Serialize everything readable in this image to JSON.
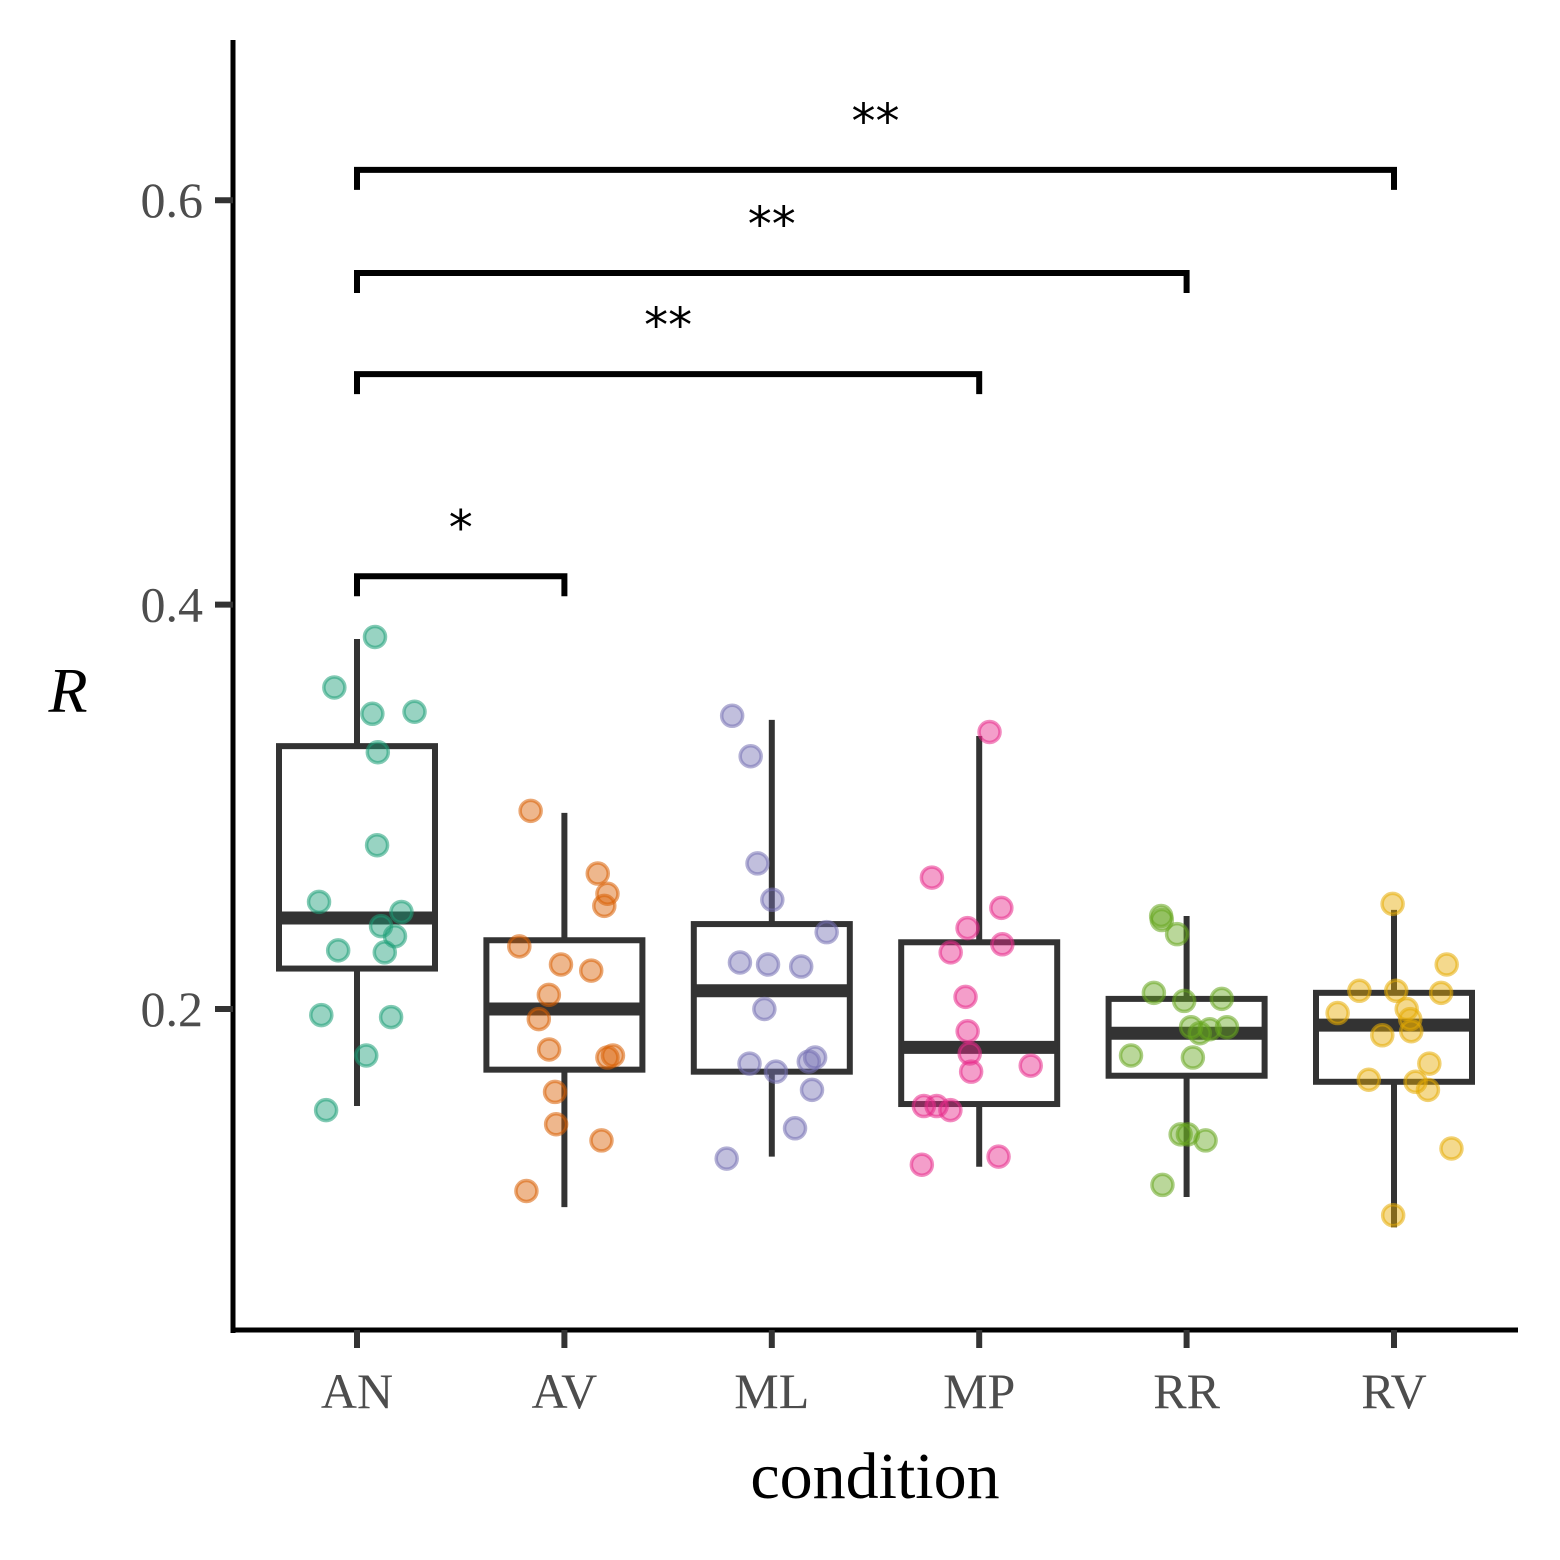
{
  "chart_data": {
    "type": "box",
    "xlabel": "condition",
    "ylabel": "R",
    "ylim": [
      0.04,
      0.68
    ],
    "yticks": [
      0.2,
      0.4,
      0.6
    ],
    "ytick_labels": [
      "0.2",
      "0.4",
      "0.6"
    ],
    "grid": false,
    "legend": "none",
    "categories": [
      "AN",
      "AV",
      "ML",
      "MP",
      "RR",
      "RV"
    ],
    "colors": {
      "AN": "#1b9e77",
      "AV": "#d95f02",
      "ML": "#7570b3",
      "MP": "#e7298a",
      "RR": "#66a61e",
      "RV": "#e6ab02"
    },
    "boxes": [
      {
        "category": "AN",
        "min": 0.152,
        "q1": 0.22,
        "median": 0.245,
        "q3": 0.33,
        "max": 0.383
      },
      {
        "category": "AV",
        "min": 0.102,
        "q1": 0.17,
        "median": 0.2,
        "q3": 0.234,
        "max": 0.297
      },
      {
        "category": "ML",
        "min": 0.127,
        "q1": 0.169,
        "median": 0.209,
        "q3": 0.242,
        "max": 0.343
      },
      {
        "category": "MP",
        "min": 0.122,
        "q1": 0.153,
        "median": 0.181,
        "q3": 0.233,
        "max": 0.335
      },
      {
        "category": "RR",
        "min": 0.107,
        "q1": 0.167,
        "median": 0.188,
        "q3": 0.205,
        "max": 0.246
      },
      {
        "category": "RV",
        "min": 0.092,
        "q1": 0.164,
        "median": 0.192,
        "q3": 0.208,
        "max": 0.249
      }
    ],
    "points": {
      "AN": [
        0.384,
        0.359,
        0.346,
        0.347,
        0.327,
        0.281,
        0.253,
        0.248,
        0.241,
        0.236,
        0.228,
        0.229,
        0.196,
        0.197,
        0.177,
        0.15
      ],
      "AV": [
        0.298,
        0.267,
        0.257,
        0.251,
        0.231,
        0.222,
        0.219,
        0.207,
        0.195,
        0.18,
        0.177,
        0.176,
        0.159,
        0.143,
        0.135,
        0.11
      ],
      "ML": [
        0.345,
        0.325,
        0.272,
        0.254,
        0.238,
        0.222,
        0.221,
        0.223,
        0.2,
        0.176,
        0.174,
        0.173,
        0.169,
        0.16,
        0.141,
        0.126
      ],
      "MP": [
        0.337,
        0.265,
        0.25,
        0.24,
        0.232,
        0.228,
        0.206,
        0.189,
        0.178,
        0.172,
        0.169,
        0.152,
        0.15,
        0.152,
        0.127,
        0.123
      ],
      "RR": [
        0.244,
        0.246,
        0.237,
        0.208,
        0.205,
        0.204,
        0.191,
        0.191,
        0.188,
        0.19,
        0.177,
        0.176,
        0.138,
        0.138,
        0.135,
        0.113
      ],
      "RV": [
        0.252,
        0.222,
        0.209,
        0.209,
        0.208,
        0.2,
        0.198,
        0.195,
        0.189,
        0.187,
        0.173,
        0.164,
        0.165,
        0.16,
        0.131,
        0.098
      ]
    },
    "comparisons": [
      {
        "from": "AN",
        "to": "AV",
        "label": "*",
        "y": 0.414
      },
      {
        "from": "AN",
        "to": "MP",
        "label": "**",
        "y": 0.514
      },
      {
        "from": "AN",
        "to": "RR",
        "label": "**",
        "y": 0.564
      },
      {
        "from": "AN",
        "to": "RV",
        "label": "**",
        "y": 0.615
      }
    ]
  }
}
